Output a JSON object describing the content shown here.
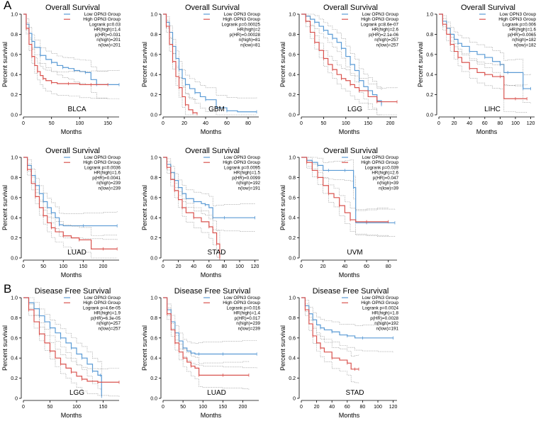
{
  "panel_labels": [
    "A",
    "B"
  ],
  "colors": {
    "low": "#5b9bd5",
    "high": "#d9534f",
    "ci": "#8a8a8a",
    "axis": "#000000"
  },
  "chart_data": [
    {
      "type": "line",
      "title": "Overall Survival",
      "cancer": "BLCA",
      "xlabel": "Months",
      "ylabel": "Percent survival",
      "xlim": [
        0,
        170
      ],
      "xticks": [
        0,
        50,
        100,
        150
      ],
      "ylim": [
        0,
        1
      ],
      "yticks": [
        "0.0",
        "0.2",
        "0.4",
        "0.6",
        "0.8",
        "1.0"
      ],
      "legend": [
        "Low OPN3 Group",
        "High OPN3 Group"
      ],
      "stats": [
        "Logrank p=0.03",
        "HR(high)=1.4",
        "p(HR)=0.031",
        "n(high)=201",
        "n(low)=201"
      ],
      "series": [
        {
          "name": "Low OPN3 Group",
          "x": [
            0,
            5,
            10,
            15,
            20,
            30,
            40,
            50,
            60,
            70,
            80,
            90,
            100,
            110,
            120,
            130,
            150,
            170
          ],
          "y": [
            1,
            0.9,
            0.81,
            0.73,
            0.67,
            0.59,
            0.55,
            0.52,
            0.49,
            0.47,
            0.46,
            0.44,
            0.43,
            0.42,
            0.35,
            0.3,
            0.3,
            0.3
          ]
        },
        {
          "name": "High OPN3 Group",
          "x": [
            0,
            5,
            10,
            15,
            20,
            25,
            30,
            35,
            40,
            50,
            60,
            80,
            100,
            120,
            150
          ],
          "y": [
            1,
            0.86,
            0.7,
            0.58,
            0.49,
            0.43,
            0.39,
            0.36,
            0.34,
            0.32,
            0.31,
            0.31,
            0.3,
            0.3,
            0.3
          ]
        }
      ]
    },
    {
      "type": "line",
      "title": "Overall Survival",
      "cancer": "GBM",
      "xlabel": "Months",
      "ylabel": "Percent survival",
      "xlim": [
        0,
        90
      ],
      "xticks": [
        0,
        20,
        40,
        60,
        80
      ],
      "ylim": [
        0,
        1
      ],
      "yticks": [
        "0.0",
        "0.2",
        "0.4",
        "0.6",
        "0.8",
        "1.0"
      ],
      "legend": [
        "Low OPN3 Group",
        "High OPN3 Group"
      ],
      "stats": [
        "Logrank p=0.00025",
        "HR(high)=2",
        "p(HR)=0.00028",
        "n(high)=81",
        "n(low)=81"
      ],
      "series": [
        {
          "name": "Low OPN3 Group",
          "x": [
            0,
            3,
            6,
            9,
            12,
            15,
            18,
            21,
            25,
            30,
            35,
            40,
            50,
            60,
            70,
            88
          ],
          "y": [
            1,
            0.92,
            0.82,
            0.68,
            0.56,
            0.45,
            0.36,
            0.3,
            0.26,
            0.22,
            0.18,
            0.15,
            0.07,
            0.04,
            0.03,
            0.03
          ]
        },
        {
          "name": "High OPN3 Group",
          "x": [
            0,
            3,
            6,
            9,
            12,
            15,
            18,
            21,
            24,
            28,
            32
          ],
          "y": [
            1,
            0.88,
            0.7,
            0.53,
            0.38,
            0.27,
            0.18,
            0.1,
            0.05,
            0.02,
            0.01
          ]
        }
      ]
    },
    {
      "type": "line",
      "title": "Overall Survival",
      "cancer": "LGG",
      "xlabel": "Months",
      "ylabel": "Percent survival",
      "xlim": [
        0,
        215
      ],
      "xticks": [
        0,
        50,
        100,
        150,
        200
      ],
      "ylim": [
        0,
        1
      ],
      "yticks": [
        "0.0",
        "0.2",
        "0.4",
        "0.6",
        "0.8",
        "1.0"
      ],
      "legend": [
        "Low OPN3 Group",
        "High OPN3 Group"
      ],
      "stats": [
        "Logrank p=8.6e-07",
        "HR(high)=2.6",
        "p(HR)=2.1e-06",
        "n(high)=257",
        "n(low)=257"
      ],
      "series": [
        {
          "name": "Low OPN3 Group",
          "x": [
            0,
            10,
            20,
            30,
            40,
            50,
            60,
            70,
            80,
            90,
            100,
            110,
            120,
            130,
            140,
            150,
            160,
            170,
            180
          ],
          "y": [
            1,
            0.98,
            0.95,
            0.92,
            0.88,
            0.84,
            0.8,
            0.76,
            0.72,
            0.66,
            0.58,
            0.5,
            0.44,
            0.34,
            0.28,
            0.24,
            0.2,
            0.14,
            0.1
          ]
        },
        {
          "name": "High OPN3 Group",
          "x": [
            0,
            10,
            20,
            30,
            40,
            50,
            60,
            70,
            80,
            90,
            100,
            110,
            120,
            130,
            150,
            170,
            190,
            215
          ],
          "y": [
            1,
            0.93,
            0.82,
            0.72,
            0.64,
            0.56,
            0.5,
            0.45,
            0.4,
            0.36,
            0.34,
            0.3,
            0.27,
            0.24,
            0.18,
            0.13,
            0.13,
            0.13
          ]
        }
      ]
    },
    {
      "type": "line",
      "title": "Overall Survival",
      "cancer": "LIHC",
      "xlabel": "Months",
      "ylabel": "Percent survival",
      "xlim": [
        0,
        125
      ],
      "xticks": [
        0,
        20,
        40,
        60,
        80,
        100,
        120
      ],
      "ylim": [
        0,
        1
      ],
      "yticks": [
        "0.0",
        "0.2",
        "0.4",
        "0.6",
        "0.8",
        "1.0"
      ],
      "legend": [
        "Low OPN3 Group",
        "High OPN3 Group"
      ],
      "stats": [
        "Logrank p=0.006",
        "HR(high)=1.6",
        "p(HR)=0.0065",
        "n(high)=182",
        "n(low)=182"
      ],
      "series": [
        {
          "name": "Low OPN3 Group",
          "x": [
            0,
            5,
            10,
            15,
            20,
            25,
            30,
            40,
            50,
            60,
            70,
            80,
            85,
            90,
            100,
            110,
            120
          ],
          "y": [
            1,
            0.93,
            0.86,
            0.8,
            0.75,
            0.71,
            0.68,
            0.63,
            0.6,
            0.57,
            0.53,
            0.5,
            0.42,
            0.42,
            0.42,
            0.26,
            0.26
          ]
        },
        {
          "name": "High OPN3 Group",
          "x": [
            0,
            5,
            10,
            15,
            20,
            25,
            30,
            40,
            50,
            60,
            70,
            80,
            85,
            100,
            115
          ],
          "y": [
            1,
            0.9,
            0.8,
            0.7,
            0.63,
            0.57,
            0.52,
            0.46,
            0.42,
            0.4,
            0.38,
            0.38,
            0.16,
            0.16,
            0.16
          ]
        }
      ]
    },
    {
      "type": "line",
      "title": "Overall Survival",
      "cancer": "LUAD",
      "xlabel": "Months",
      "ylabel": "Percent survival",
      "xlim": [
        0,
        240
      ],
      "xticks": [
        0,
        50,
        100,
        150,
        200
      ],
      "ylim": [
        0,
        1
      ],
      "yticks": [
        "0.0",
        "0.2",
        "0.4",
        "0.6",
        "0.8",
        "1.0"
      ],
      "legend": [
        "Low OPN3 Group",
        "High OPN3 Group"
      ],
      "stats": [
        "Logrank p=0.0036",
        "HR(high)=1.6",
        "p(HR)=0.0041",
        "n(high)=239",
        "n(low)=239"
      ],
      "series": [
        {
          "name": "Low OPN3 Group",
          "x": [
            0,
            10,
            20,
            30,
            40,
            50,
            60,
            70,
            80,
            90,
            100,
            150,
            200,
            235
          ],
          "y": [
            1,
            0.92,
            0.82,
            0.72,
            0.64,
            0.56,
            0.5,
            0.45,
            0.4,
            0.33,
            0.32,
            0.32,
            0.32,
            0.32
          ]
        },
        {
          "name": "High OPN3 Group",
          "x": [
            0,
            10,
            20,
            30,
            40,
            50,
            60,
            70,
            80,
            100,
            120,
            140,
            170,
            200,
            235
          ],
          "y": [
            1,
            0.88,
            0.74,
            0.61,
            0.5,
            0.42,
            0.35,
            0.3,
            0.26,
            0.22,
            0.2,
            0.18,
            0.09,
            0.09,
            0.09
          ]
        }
      ]
    },
    {
      "type": "line",
      "title": "Overall Survival",
      "cancer": "STAD",
      "xlabel": "Months",
      "ylabel": "Percent survival",
      "xlim": [
        0,
        125
      ],
      "xticks": [
        0,
        20,
        40,
        60,
        80,
        100,
        120
      ],
      "ylim": [
        0,
        1
      ],
      "yticks": [
        "0.0",
        "0.2",
        "0.4",
        "0.6",
        "0.8",
        "1.0"
      ],
      "legend": [
        "Low OPN3 Group",
        "High OPN3 Group"
      ],
      "stats": [
        "Logrank p=0.0095",
        "HR(high)=1.5",
        "p(HR)=0.0099",
        "n(high)=192",
        "n(low)=191"
      ],
      "series": [
        {
          "name": "Low OPN3 Group",
          "x": [
            0,
            5,
            10,
            15,
            20,
            25,
            30,
            40,
            50,
            55,
            60,
            65,
            70,
            80,
            100,
            120
          ],
          "y": [
            1,
            0.93,
            0.85,
            0.77,
            0.7,
            0.64,
            0.59,
            0.56,
            0.54,
            0.53,
            0.5,
            0.4,
            0.4,
            0.4,
            0.4,
            0.4
          ]
        },
        {
          "name": "High OPN3 Group",
          "x": [
            0,
            5,
            10,
            15,
            20,
            25,
            30,
            40,
            50,
            60,
            65,
            70,
            72,
            74
          ],
          "y": [
            1,
            0.9,
            0.78,
            0.67,
            0.58,
            0.5,
            0.45,
            0.4,
            0.36,
            0.31,
            0.25,
            0.14,
            0.14,
            0.0
          ]
        }
      ]
    },
    {
      "type": "line",
      "title": "Overall Survival",
      "cancer": "UVM",
      "xlabel": "Months",
      "ylabel": "Percent survival",
      "xlim": [
        0,
        88
      ],
      "xticks": [
        0,
        20,
        40,
        60,
        80
      ],
      "ylim": [
        0,
        1
      ],
      "yticks": [
        "0.0",
        "0.2",
        "0.4",
        "0.6",
        "0.8",
        "1.0"
      ],
      "legend": [
        "Low OPN3 Group",
        "High OPN3 Group"
      ],
      "stats": [
        "Logrank p=0.039",
        "HR(high)=2.6",
        "p(HR)=0.047",
        "n(high)=39",
        "n(low)=39"
      ],
      "series": [
        {
          "name": "Low OPN3 Group",
          "x": [
            0,
            5,
            10,
            15,
            20,
            25,
            30,
            40,
            45,
            48,
            50,
            60,
            70,
            86
          ],
          "y": [
            1,
            0.97,
            0.95,
            0.92,
            0.87,
            0.87,
            0.87,
            0.87,
            0.87,
            0.7,
            0.35,
            0.35,
            0.35,
            0.35
          ]
        },
        {
          "name": "High OPN3 Group",
          "x": [
            0,
            5,
            10,
            15,
            20,
            25,
            30,
            35,
            40,
            45,
            50,
            60,
            70,
            80
          ],
          "y": [
            1,
            0.95,
            0.87,
            0.8,
            0.72,
            0.64,
            0.6,
            0.52,
            0.45,
            0.38,
            0.36,
            0.36,
            0.36,
            0.36
          ]
        }
      ]
    },
    {
      "type": "line",
      "title": "Disease Free Survival",
      "cancer": "LGG",
      "xlabel": "Months",
      "ylabel": "Percent survival",
      "xlim": [
        0,
        180
      ],
      "xticks": [
        0,
        50,
        100,
        150
      ],
      "ylim": [
        0,
        1
      ],
      "yticks": [
        "0",
        "0.2",
        "0.4",
        "0.6",
        "0.8",
        "1.0"
      ],
      "legend": [
        "Low OPN3 Group",
        "High OPN3 Group"
      ],
      "stats": [
        "Logrank p=4.6e-05",
        "HR(high)=1.9",
        "p(HR)=6.3e-05",
        "n(high)=257",
        "n(low)=257"
      ],
      "series": [
        {
          "name": "Low OPN3 Group",
          "x": [
            0,
            10,
            20,
            30,
            40,
            50,
            60,
            70,
            80,
            90,
            100,
            110,
            120,
            130,
            140,
            145,
            147
          ],
          "y": [
            1,
            0.95,
            0.89,
            0.82,
            0.76,
            0.7,
            0.65,
            0.6,
            0.55,
            0.5,
            0.44,
            0.4,
            0.34,
            0.27,
            0.23,
            0.23,
            0.02
          ]
        },
        {
          "name": "High OPN3 Group",
          "x": [
            0,
            10,
            20,
            30,
            40,
            50,
            60,
            70,
            80,
            90,
            100,
            110,
            120,
            140,
            160,
            180
          ],
          "y": [
            1,
            0.88,
            0.76,
            0.64,
            0.55,
            0.47,
            0.4,
            0.34,
            0.3,
            0.26,
            0.22,
            0.19,
            0.17,
            0.16,
            0.16,
            0.16
          ]
        }
      ]
    },
    {
      "type": "line",
      "title": "Disease Free Survival",
      "cancer": "LUAD",
      "xlabel": "Months",
      "ylabel": "Percent survival",
      "xlim": [
        0,
        240
      ],
      "xticks": [
        0,
        50,
        100,
        150,
        200
      ],
      "ylim": [
        0,
        1
      ],
      "yticks": [
        "0.0",
        "0.2",
        "0.4",
        "0.6",
        "0.8",
        "1.0"
      ],
      "legend": [
        "Low OPN3 Group",
        "High OPN3 Group"
      ],
      "stats": [
        "Logrank p=0.016",
        "HR(high)=1.4",
        "p(HR)=0.017",
        "n(high)=239",
        "n(low)=239"
      ],
      "series": [
        {
          "name": "Low OPN3 Group",
          "x": [
            0,
            10,
            20,
            30,
            40,
            50,
            60,
            70,
            80,
            90,
            100,
            150,
            200,
            235
          ],
          "y": [
            1,
            0.88,
            0.76,
            0.65,
            0.57,
            0.5,
            0.47,
            0.45,
            0.44,
            0.44,
            0.44,
            0.44,
            0.44,
            0.44
          ]
        },
        {
          "name": "High OPN3 Group",
          "x": [
            0,
            10,
            20,
            30,
            40,
            50,
            60,
            70,
            80,
            90,
            100,
            150,
            200,
            215
          ],
          "y": [
            1,
            0.84,
            0.68,
            0.55,
            0.46,
            0.4,
            0.36,
            0.32,
            0.3,
            0.23,
            0.23,
            0.23,
            0.23,
            0.23
          ]
        }
      ]
    },
    {
      "type": "line",
      "title": "Disease Free Survival",
      "cancer": "STAD",
      "xlabel": "Months",
      "ylabel": "Percent survival",
      "xlim": [
        0,
        125
      ],
      "xticks": [
        0,
        20,
        40,
        60,
        80,
        100,
        120
      ],
      "ylim": [
        0,
        1
      ],
      "yticks": [
        "0",
        "0.2",
        "0.4",
        "0.6",
        "0.8",
        "1.0"
      ],
      "legend": [
        "Low OPN3 Group",
        "High OPN3 Group"
      ],
      "stats": [
        "Logrank p=0.0024",
        "HR(high)=1.8",
        "p(HR)=0.0028",
        "n(high)=192",
        "n(low)=191"
      ],
      "series": [
        {
          "name": "Low OPN3 Group",
          "x": [
            0,
            5,
            10,
            15,
            20,
            25,
            30,
            40,
            50,
            60,
            70,
            80,
            100,
            120
          ],
          "y": [
            1,
            0.92,
            0.84,
            0.78,
            0.73,
            0.7,
            0.68,
            0.66,
            0.63,
            0.62,
            0.6,
            0.6,
            0.6,
            0.6
          ]
        },
        {
          "name": "High OPN3 Group",
          "x": [
            0,
            5,
            10,
            15,
            20,
            25,
            30,
            40,
            50,
            60,
            65,
            70,
            75
          ],
          "y": [
            1,
            0.88,
            0.74,
            0.62,
            0.55,
            0.5,
            0.46,
            0.4,
            0.38,
            0.35,
            0.29,
            0.29,
            0.29
          ]
        }
      ]
    }
  ]
}
